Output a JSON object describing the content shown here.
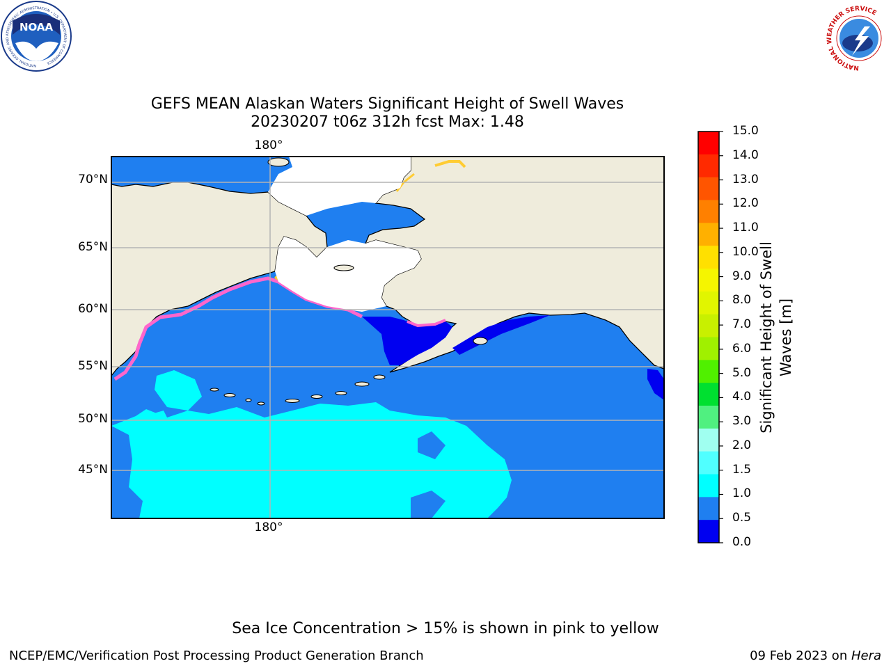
{
  "title_line1": "GEFS MEAN Alaskan Waters Significant Height of Swell Waves",
  "title_line2": "20230207 t06z 312h fcst   Max: 1.48",
  "map": {
    "lat_labels": [
      "70°N",
      "65°N",
      "60°N",
      "55°N",
      "50°N",
      "45°N"
    ],
    "lon_label_top": "180°",
    "lon_label_bottom": "180°",
    "colors": {
      "land": "#efecdc",
      "ocean_low": "#1f7ff0",
      "ocean_lowest": "#0000f0",
      "ocean_mid": "#00ffff",
      "grid": "#b4b4b4"
    }
  },
  "colorbar": {
    "title_line1": "Significant Height of Swell",
    "title_line2": "Waves [m]",
    "ticks": [
      "15.0",
      "14.0",
      "13.0",
      "12.0",
      "11.0",
      "10.0",
      "9.0",
      "8.0",
      "7.0",
      "6.0",
      "5.0",
      "4.0",
      "3.0",
      "2.0",
      "1.5",
      "1.0",
      "0.5",
      "0.0"
    ],
    "colors": [
      "#ff0000",
      "#ff2a00",
      "#ff5500",
      "#ff8000",
      "#ffb000",
      "#ffe000",
      "#f5f500",
      "#e1f500",
      "#c8f000",
      "#a0f000",
      "#50f000",
      "#00e030",
      "#50f080",
      "#a0fff0",
      "#50ffff",
      "#00ffff",
      "#1f7ff0",
      "#0000f0"
    ]
  },
  "sea_ice_note": "Sea Ice Concentration > 15% is shown in pink to yellow",
  "footer_left": "NCEP/EMC/Verification Post Processing Product Generation Branch",
  "footer_right_date": "09 Feb 2023 on ",
  "footer_right_host": "Hera",
  "logos": {
    "noaa_text": "NOAA",
    "noaa_ring_text": "NATIONAL OCEANIC AND ATMOSPHERIC ADMINISTRATION • U.S. DEPARTMENT OF COMMERCE",
    "nws_ring_text": "NATIONAL WEATHER SERVICE"
  }
}
